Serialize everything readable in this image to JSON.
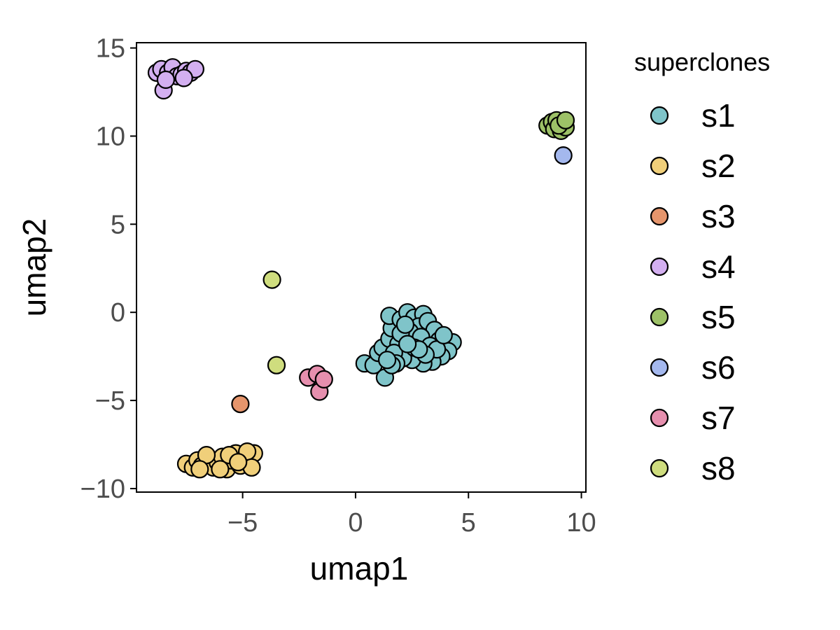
{
  "chart_data": {
    "type": "scatter",
    "xlabel": "umap1",
    "ylabel": "umap2",
    "xlim": [
      -9.7,
      10.2
    ],
    "ylim": [
      -10.2,
      15.3
    ],
    "x_ticks": [
      -5,
      0,
      5,
      10
    ],
    "y_ticks": [
      -10,
      -5,
      0,
      5,
      10,
      15
    ],
    "x_tick_labels": [
      "−5",
      "0",
      "5",
      "10"
    ],
    "y_tick_labels": [
      "−10",
      "−5",
      "0",
      "5",
      "10",
      "15"
    ],
    "grid": false,
    "legend": {
      "title": "superclones",
      "position": "right"
    },
    "series": [
      {
        "name": "s1",
        "color": "#7fc4c9",
        "points": [
          [
            0.4,
            -2.9
          ],
          [
            0.8,
            -3.0
          ],
          [
            1.3,
            -3.7
          ],
          [
            1.0,
            -2.3
          ],
          [
            1.2,
            -2.0
          ],
          [
            1.5,
            -1.5
          ],
          [
            1.9,
            -1.8
          ],
          [
            1.6,
            -0.9
          ],
          [
            1.5,
            -0.2
          ],
          [
            2.0,
            -0.4
          ],
          [
            2.3,
            0.0
          ],
          [
            2.6,
            -0.3
          ],
          [
            3.0,
            -0.1
          ],
          [
            2.8,
            -0.8
          ],
          [
            3.2,
            -0.5
          ],
          [
            3.5,
            -1.0
          ],
          [
            3.7,
            -1.6
          ],
          [
            4.0,
            -1.8
          ],
          [
            4.3,
            -1.7
          ],
          [
            4.1,
            -2.2
          ],
          [
            3.8,
            -2.5
          ],
          [
            3.4,
            -2.8
          ],
          [
            3.0,
            -2.9
          ],
          [
            2.5,
            -2.7
          ],
          [
            2.1,
            -2.6
          ],
          [
            1.7,
            -2.3
          ],
          [
            2.4,
            -1.1
          ],
          [
            2.9,
            -1.4
          ],
          [
            2.6,
            -2.0
          ],
          [
            3.3,
            -1.9
          ],
          [
            1.8,
            -2.9
          ],
          [
            2.0,
            -1.2
          ],
          [
            3.6,
            -2.1
          ],
          [
            2.2,
            -0.7
          ],
          [
            3.1,
            -2.4
          ],
          [
            1.6,
            -3.0
          ],
          [
            2.8,
            -2.1
          ],
          [
            2.3,
            -1.8
          ],
          [
            1.4,
            -2.7
          ],
          [
            3.9,
            -1.3
          ]
        ]
      },
      {
        "name": "s2",
        "color": "#f0cf7a",
        "points": [
          [
            -7.5,
            -8.6
          ],
          [
            -7.2,
            -8.8
          ],
          [
            -7.0,
            -8.4
          ],
          [
            -6.8,
            -8.7
          ],
          [
            -6.5,
            -8.3
          ],
          [
            -6.3,
            -8.8
          ],
          [
            -6.1,
            -8.5
          ],
          [
            -5.9,
            -8.2
          ],
          [
            -5.7,
            -8.9
          ],
          [
            -5.5,
            -8.4
          ],
          [
            -5.3,
            -8.0
          ],
          [
            -5.1,
            -8.7
          ],
          [
            -4.9,
            -8.3
          ],
          [
            -4.7,
            -8.6
          ],
          [
            -4.5,
            -8.0
          ],
          [
            -4.8,
            -7.9
          ],
          [
            -5.6,
            -8.1
          ],
          [
            -6.0,
            -8.9
          ],
          [
            -6.6,
            -8.1
          ],
          [
            -4.6,
            -8.8
          ],
          [
            -5.2,
            -8.5
          ],
          [
            -6.9,
            -8.9
          ]
        ]
      },
      {
        "name": "s3",
        "color": "#e5956c",
        "points": [
          [
            -5.1,
            -5.2
          ]
        ]
      },
      {
        "name": "s4",
        "color": "#d3aff0",
        "points": [
          [
            -8.8,
            13.6
          ],
          [
            -8.6,
            13.8
          ],
          [
            -8.5,
            12.6
          ],
          [
            -8.3,
            13.6
          ],
          [
            -8.1,
            13.9
          ],
          [
            -7.9,
            13.4
          ],
          [
            -7.7,
            13.5
          ],
          [
            -7.5,
            13.7
          ],
          [
            -7.3,
            13.6
          ],
          [
            -7.1,
            13.8
          ],
          [
            -8.4,
            13.2
          ],
          [
            -7.6,
            13.3
          ]
        ]
      },
      {
        "name": "s5",
        "color": "#9dc167",
        "points": [
          [
            8.5,
            10.6
          ],
          [
            8.7,
            10.8
          ],
          [
            8.8,
            10.4
          ],
          [
            9.0,
            10.7
          ],
          [
            9.1,
            10.3
          ],
          [
            9.2,
            10.8
          ],
          [
            9.3,
            10.5
          ],
          [
            8.9,
            10.9
          ],
          [
            9.0,
            10.6
          ],
          [
            9.3,
            10.9
          ]
        ]
      },
      {
        "name": "s6",
        "color": "#a4b8ee",
        "points": [
          [
            9.2,
            8.9
          ]
        ]
      },
      {
        "name": "s7",
        "color": "#e68fae",
        "points": [
          [
            -2.1,
            -3.7
          ],
          [
            -1.7,
            -3.5
          ],
          [
            -1.6,
            -4.5
          ],
          [
            -1.4,
            -3.8
          ]
        ]
      },
      {
        "name": "s8",
        "color": "#cfdd7e",
        "points": [
          [
            -3.7,
            1.85
          ],
          [
            -3.5,
            -3.0
          ]
        ]
      }
    ]
  }
}
